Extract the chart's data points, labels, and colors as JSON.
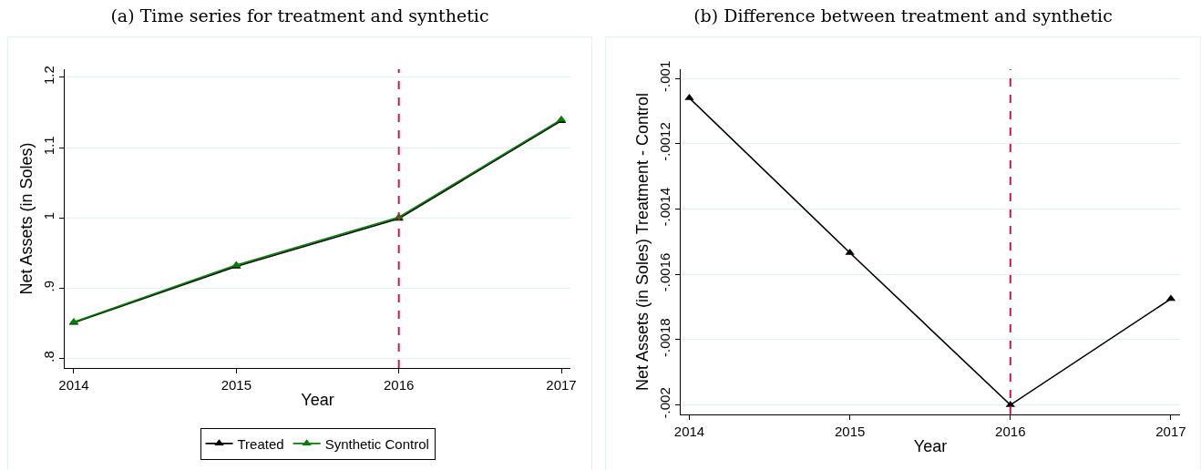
{
  "chart_data": [
    {
      "type": "line",
      "title": "(a) Time series for treatment and synthetic",
      "xlabel": "Year",
      "ylabel": "Net Assets (in Soles)",
      "x": [
        2014,
        2015,
        2016,
        2017
      ],
      "series": [
        {
          "name": "Treated",
          "color": "#000000",
          "values": [
            0.851,
            0.931,
            0.999,
            1.138
          ]
        },
        {
          "name": "Synthetic Control",
          "color": "#008000",
          "values": [
            0.852,
            0.933,
            1.001,
            1.14
          ]
        }
      ],
      "xlim": [
        2013.944,
        2017.056
      ],
      "xticks": [
        2014,
        2015,
        2016,
        2017
      ],
      "ylim": [
        0.7866,
        1.2114
      ],
      "yticks": [
        {
          "value": 0.8,
          "label": ".8"
        },
        {
          "value": 0.9,
          "label": ".9"
        },
        1,
        1.1,
        1.2
      ],
      "ref_lines": [
        {
          "axis": "x",
          "value": 2016,
          "color": "#c8194b",
          "line_style": "dashed"
        }
      ],
      "grid": "y",
      "legend": "bottom",
      "marker": "triangle",
      "line_style": "solid"
    },
    {
      "type": "line",
      "title": "(b) Difference between treatment and synthetic",
      "xlabel": "Year",
      "ylabel": "Net Assets (in Soles) Treatment - Control",
      "x": [
        2014,
        2015,
        2016,
        2017
      ],
      "series": [
        {
          "color": "#000000",
          "values": [
            -0.00106,
            -0.001534,
            -0.002,
            -0.001675
          ]
        }
      ],
      "xlim": [
        2013.946,
        2017.057
      ],
      "xticks": [
        2014,
        2015,
        2016,
        2017
      ],
      "ylim": [
        -0.002029,
        -0.000972
      ],
      "yticks": [
        {
          "value": -0.002,
          "label": "-.002"
        },
        {
          "value": -0.0018,
          "label": "-.0018"
        },
        {
          "value": -0.0016,
          "label": "-.0016"
        },
        {
          "value": -0.0014,
          "label": "-.0014"
        },
        {
          "value": -0.0012,
          "label": "-.0012"
        },
        {
          "value": -0.001,
          "label": "-.001"
        }
      ],
      "ref_lines": [
        {
          "axis": "x",
          "value": 2016,
          "color": "#c8194b",
          "line_style": "dashed"
        }
      ],
      "grid": "y",
      "marker": "triangle",
      "line_style": "solid"
    }
  ]
}
